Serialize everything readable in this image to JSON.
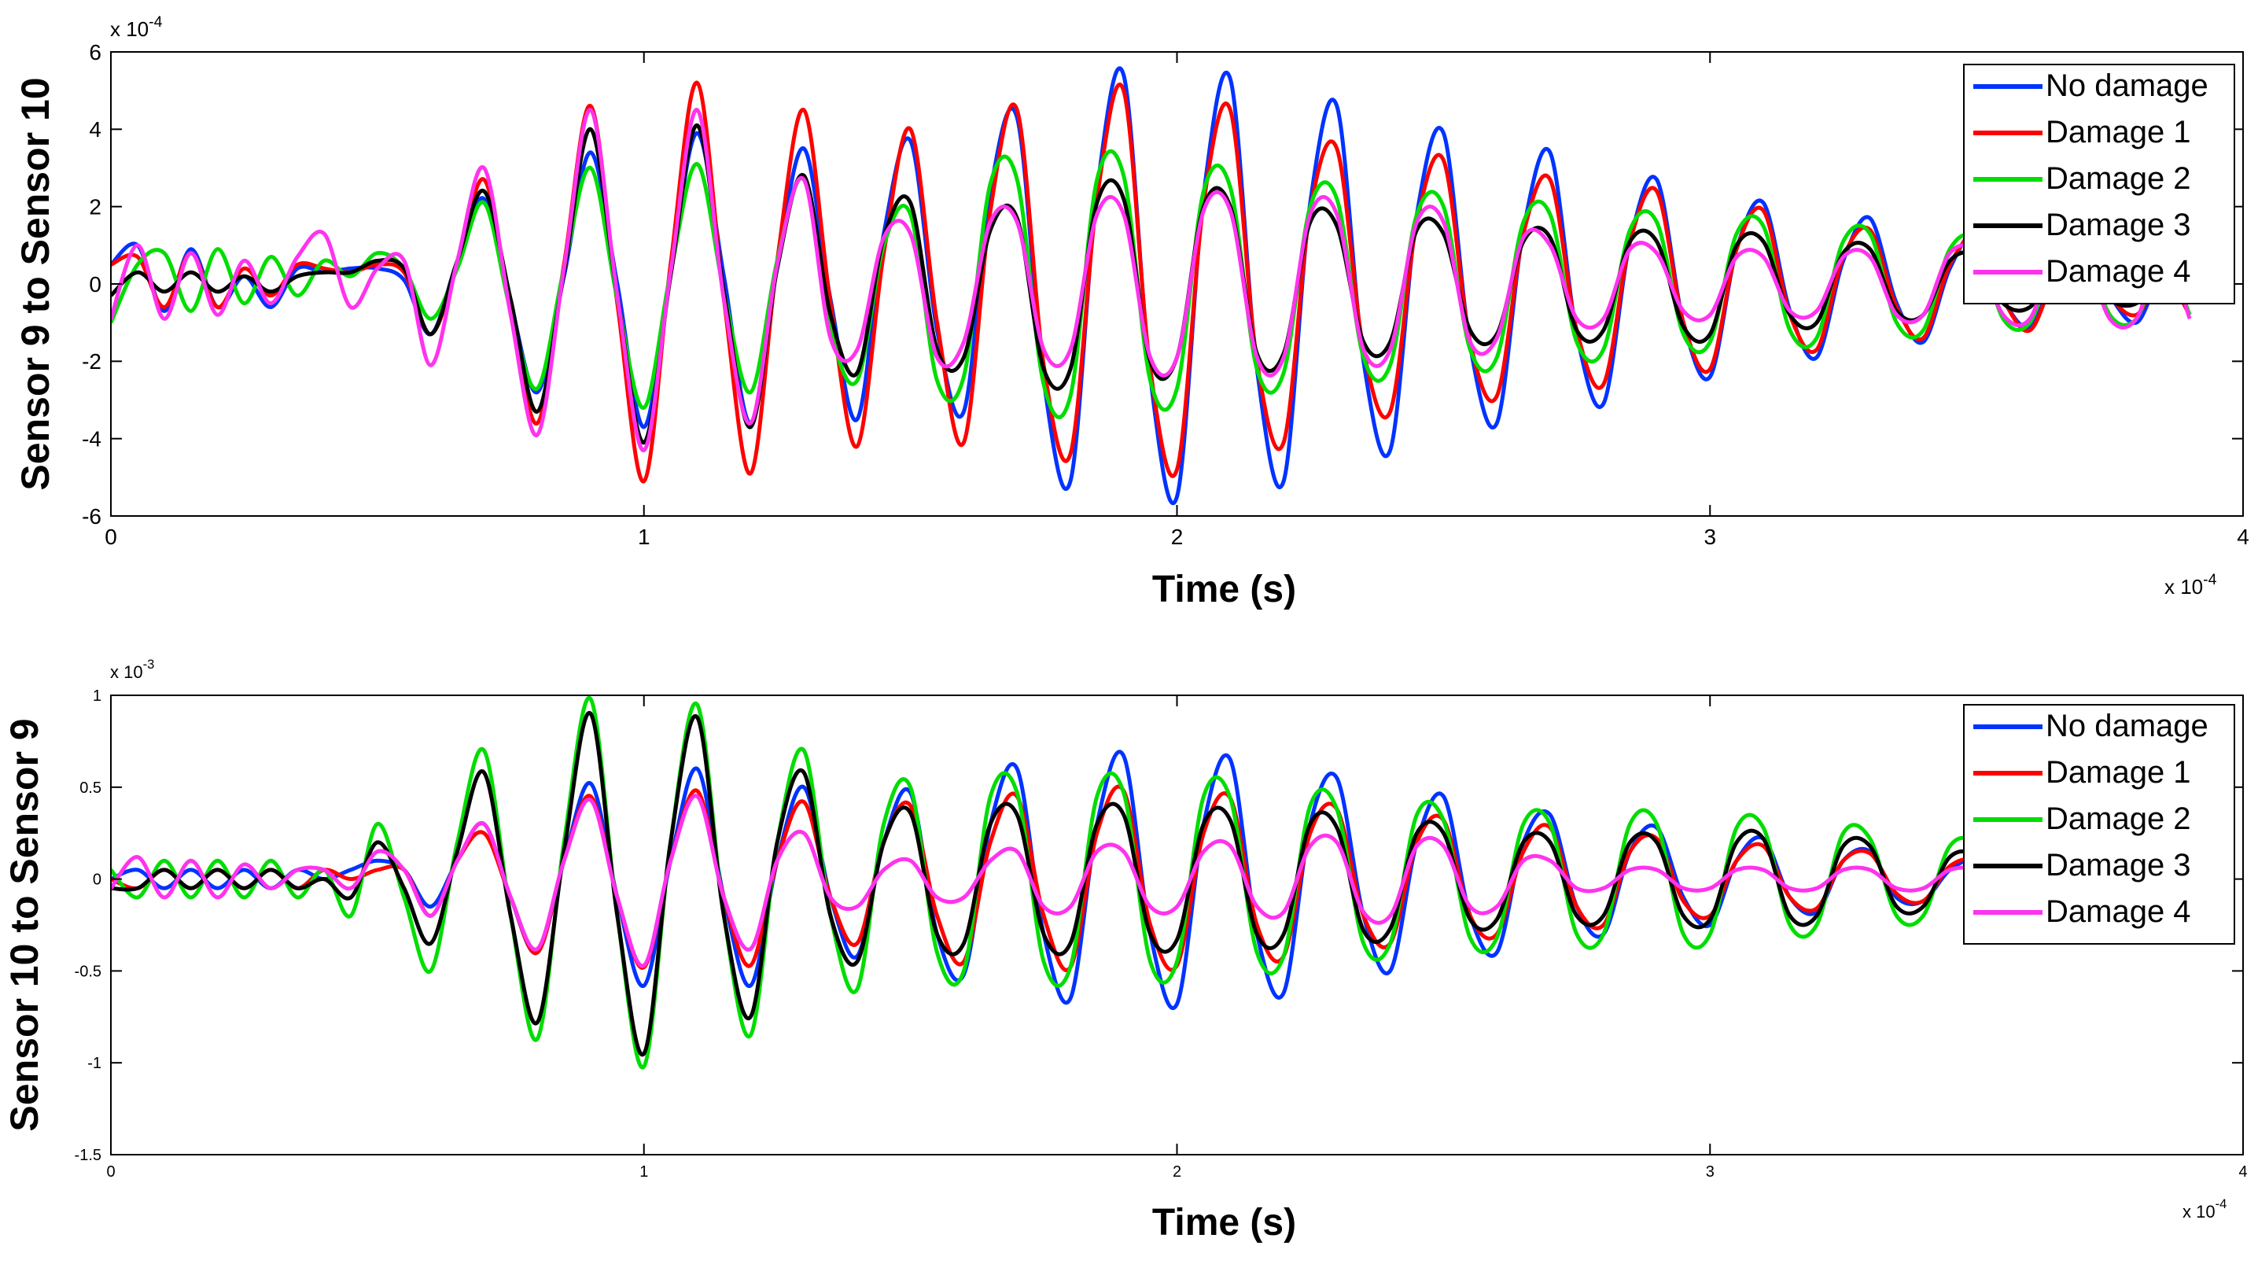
{
  "chart_data": [
    {
      "type": "line",
      "ylabel": "Sensor 9 to Sensor 10",
      "xlabel": "Time (s)",
      "x_exponent": "x 10",
      "x_exponent_power": "-4",
      "y_exponent": "x 10",
      "y_exponent_power": "-4",
      "xlim": [
        0,
        4
      ],
      "ylim": [
        -6,
        6
      ],
      "x_ticks": [
        "0",
        "1",
        "2",
        "3",
        "4"
      ],
      "y_ticks": [
        "-6",
        "-4",
        "-2",
        "0",
        "2",
        "4",
        "6"
      ],
      "legend_position": "top-right",
      "x": [
        0,
        0.05,
        0.1,
        0.15,
        0.2,
        0.25,
        0.3,
        0.35,
        0.4,
        0.45,
        0.5,
        0.55,
        0.6,
        0.65,
        0.7,
        0.75,
        0.8,
        0.85,
        0.9,
        0.95,
        1.0,
        1.05,
        1.1,
        1.15,
        1.2,
        1.25,
        1.3,
        1.35,
        1.4,
        1.45,
        1.5,
        1.55,
        1.6,
        1.65,
        1.7,
        1.75,
        1.8,
        1.85,
        1.9,
        1.95,
        2.0,
        2.05,
        2.1,
        2.15,
        2.2,
        2.25,
        2.3,
        2.35,
        2.4,
        2.45,
        2.5,
        2.55,
        2.6,
        2.65,
        2.7,
        2.75,
        2.8,
        2.85,
        2.9,
        2.95,
        3.0,
        3.05,
        3.1,
        3.15,
        3.2,
        3.25,
        3.3,
        3.35,
        3.4,
        3.45,
        3.5,
        3.55,
        3.6,
        3.65,
        3.7,
        3.75,
        3.8,
        3.85,
        3.9
      ],
      "series": [
        {
          "name": "No damage",
          "color": "#0033ff",
          "values": [
            0.5,
            1.0,
            -0.7,
            0.9,
            -0.6,
            0.2,
            -0.6,
            0.4,
            0.3,
            0.4,
            0.4,
            0.1,
            -1.3,
            0.6,
            2.2,
            -0.5,
            -2.8,
            0.2,
            3.4,
            0.0,
            -3.7,
            0.3,
            3.9,
            0.2,
            -3.6,
            0.5,
            3.5,
            -0.4,
            -3.5,
            1.3,
            3.7,
            -1.2,
            -3.3,
            2.4,
            4.3,
            -2.5,
            -5.1,
            2.4,
            5.4,
            -2.4,
            -5.5,
            2.3,
            5.3,
            -2.2,
            -5.1,
            2.1,
            4.6,
            -2.0,
            -4.3,
            1.8,
            3.9,
            -1.6,
            -3.6,
            1.4,
            3.4,
            -1.3,
            -3.1,
            1.1,
            2.7,
            -1.0,
            -2.4,
            0.9,
            2.1,
            -0.7,
            -1.9,
            0.6,
            1.7,
            -0.5,
            -1.5,
            0.4,
            1.3,
            -0.4,
            -1.1,
            0.3,
            0.9,
            -0.3,
            -1.0,
            0.2,
            -0.8
          ]
        },
        {
          "name": "Damage 1",
          "color": "#ff0000",
          "values": [
            0.5,
            0.7,
            -0.6,
            0.8,
            -0.6,
            0.4,
            -0.3,
            0.5,
            0.4,
            0.3,
            0.5,
            0.3,
            -1.3,
            0.5,
            2.7,
            -0.6,
            -3.6,
            0.5,
            4.6,
            -0.5,
            -5.1,
            0.5,
            5.2,
            -0.4,
            -4.9,
            0.6,
            4.5,
            -0.5,
            -4.2,
            0.8,
            4.0,
            -1.0,
            -4.1,
            1.9,
            4.5,
            -2.1,
            -4.4,
            2.2,
            5.0,
            -2.2,
            -4.8,
            2.1,
            4.5,
            -2.0,
            -4.1,
            1.9,
            3.5,
            -1.7,
            -3.3,
            1.6,
            3.2,
            -1.5,
            -2.9,
            1.3,
            2.7,
            -1.2,
            -2.6,
            1.1,
            2.4,
            -1.0,
            -2.2,
            0.9,
            1.9,
            -0.8,
            -1.7,
            0.7,
            1.4,
            -0.6,
            -1.4,
            0.5,
            1.2,
            -0.4,
            -1.2,
            0.3,
            1.0,
            -0.3,
            -0.8,
            0.2,
            -0.8
          ]
        },
        {
          "name": "Damage 2",
          "color": "#00dd00",
          "values": [
            -1.0,
            0.5,
            0.8,
            -0.7,
            0.9,
            -0.5,
            0.7,
            -0.3,
            0.6,
            0.2,
            0.8,
            0.4,
            -0.9,
            0.4,
            2.1,
            -0.7,
            -2.7,
            0.4,
            3.0,
            -0.4,
            -3.2,
            0.3,
            3.1,
            -0.2,
            -2.8,
            0.6,
            2.7,
            -1.2,
            -2.5,
            1.0,
            1.8,
            -2.5,
            -2.4,
            2.6,
            2.7,
            -2.6,
            -2.9,
            2.7,
            2.8,
            -2.5,
            -2.7,
            2.4,
            2.5,
            -2.2,
            -2.3,
            2.0,
            2.2,
            -1.9,
            -2.1,
            1.8,
            2.0,
            -1.7,
            -1.9,
            1.6,
            1.8,
            -1.5,
            -1.7,
            1.4,
            1.6,
            -1.3,
            -1.5,
            1.3,
            1.5,
            -1.2,
            -1.4,
            1.1,
            1.3,
            -1.0,
            -1.2,
            0.9,
            1.1,
            -0.9,
            -1.0,
            0.8,
            1.0,
            -0.8,
            -0.9,
            0.7,
            -0.8
          ]
        },
        {
          "name": "Damage 3",
          "color": "#000000",
          "values": [
            -0.3,
            0.3,
            -0.2,
            0.3,
            -0.2,
            0.2,
            -0.2,
            0.2,
            0.3,
            0.3,
            0.6,
            0.4,
            -1.3,
            0.6,
            2.4,
            -0.4,
            -3.3,
            0.3,
            4.0,
            -0.3,
            -4.1,
            0.2,
            4.1,
            -0.2,
            -3.7,
            0.4,
            2.8,
            -0.8,
            -2.3,
            1.2,
            2.1,
            -1.7,
            -1.9,
            1.4,
            1.7,
            -2.2,
            -2.2,
            2.1,
            2.2,
            -2.0,
            -1.9,
            2.0,
            2.0,
            -1.8,
            -1.8,
            1.6,
            1.5,
            -1.5,
            -1.5,
            1.4,
            1.3,
            -1.2,
            -1.3,
            1.1,
            1.2,
            -1.2,
            -1.2,
            1.1,
            1.1,
            -1.1,
            -1.3,
            1.0,
            1.1,
            -0.8,
            -1.0,
            0.8,
            0.9,
            -0.7,
            -0.8,
            0.6,
            0.7,
            -0.5,
            -0.6,
            0.4,
            0.5,
            -0.4,
            -0.5,
            0.3,
            -0.3
          ]
        },
        {
          "name": "Damage 4",
          "color": "#ff33ee",
          "values": [
            -0.9,
            1.0,
            -0.9,
            0.8,
            -0.8,
            0.6,
            -0.5,
            0.7,
            1.3,
            -0.6,
            0.4,
            0.6,
            -2.1,
            0.6,
            3.0,
            -0.8,
            -3.9,
            0.4,
            4.5,
            -0.3,
            -4.3,
            0.3,
            4.5,
            -0.4,
            -3.6,
            0.5,
            2.7,
            -1.4,
            -1.7,
            1.2,
            1.3,
            -1.9,
            -1.5,
            1.6,
            1.6,
            -1.7,
            -1.7,
            1.8,
            1.8,
            -1.9,
            -1.9,
            1.9,
            1.9,
            -1.9,
            -1.9,
            1.8,
            1.8,
            -1.7,
            -1.7,
            1.6,
            1.6,
            -1.5,
            -1.4,
            1.2,
            1.0,
            -0.9,
            -0.9,
            0.9,
            0.8,
            -0.7,
            -0.8,
            0.7,
            0.7,
            -0.7,
            -0.7,
            0.7,
            0.7,
            -0.8,
            -0.8,
            0.8,
            0.8,
            -0.8,
            -0.9,
            0.9,
            0.9,
            -0.9,
            -0.9,
            0.9,
            -0.9
          ]
        }
      ]
    },
    {
      "type": "line",
      "ylabel": "Sensor 10 to Sensor 9",
      "xlabel": "Time (s)",
      "x_exponent": "x 10",
      "x_exponent_power": "-4",
      "y_exponent": "x 10",
      "y_exponent_power": "-3",
      "xlim": [
        0,
        4
      ],
      "ylim": [
        -1.5,
        1
      ],
      "x_ticks": [
        "0",
        "1",
        "2",
        "3",
        "4"
      ],
      "y_ticks": [
        "-1.5",
        "-1",
        "-0.5",
        "0",
        "0.5",
        "1"
      ],
      "legend_position": "top-right",
      "x": [
        0,
        0.05,
        0.1,
        0.15,
        0.2,
        0.25,
        0.3,
        0.35,
        0.4,
        0.45,
        0.5,
        0.55,
        0.6,
        0.65,
        0.7,
        0.75,
        0.8,
        0.85,
        0.9,
        0.95,
        1.0,
        1.05,
        1.1,
        1.15,
        1.2,
        1.25,
        1.3,
        1.35,
        1.4,
        1.45,
        1.5,
        1.55,
        1.6,
        1.65,
        1.7,
        1.75,
        1.8,
        1.85,
        1.9,
        1.95,
        2.0,
        2.05,
        2.1,
        2.15,
        2.2,
        2.25,
        2.3,
        2.35,
        2.4,
        2.45,
        2.5,
        2.55,
        2.6,
        2.65,
        2.7,
        2.75,
        2.8,
        2.85,
        2.9,
        2.95,
        3.0,
        3.05,
        3.1,
        3.15,
        3.2,
        3.25,
        3.3,
        3.35,
        3.4,
        3.45,
        3.5,
        3.55,
        3.6,
        3.65,
        3.7,
        3.75,
        3.8,
        3.85,
        3.9
      ],
      "series": [
        {
          "name": "No damage",
          "color": "#0033ff",
          "values": [
            0.0,
            0.05,
            -0.05,
            0.05,
            -0.05,
            0.05,
            -0.05,
            0.05,
            0.0,
            0.05,
            0.1,
            0.05,
            -0.15,
            0.1,
            0.3,
            -0.1,
            -0.4,
            0.1,
            0.52,
            -0.1,
            -0.58,
            0.1,
            0.6,
            -0.1,
            -0.58,
            0.1,
            0.5,
            -0.1,
            -0.42,
            0.2,
            0.47,
            -0.3,
            -0.52,
            0.3,
            0.6,
            -0.3,
            -0.65,
            0.3,
            0.67,
            -0.3,
            -0.68,
            0.3,
            0.65,
            -0.3,
            -0.62,
            0.3,
            0.55,
            -0.2,
            -0.5,
            0.2,
            0.45,
            -0.2,
            -0.4,
            0.2,
            0.35,
            -0.15,
            -0.3,
            0.15,
            0.28,
            -0.1,
            -0.25,
            0.1,
            0.22,
            -0.1,
            -0.18,
            0.1,
            0.15,
            -0.1,
            -0.12,
            0.05,
            0.1,
            -0.05,
            -0.1,
            0.05,
            0.08,
            -0.05,
            -0.08,
            0.05,
            -0.05
          ]
        },
        {
          "name": "Damage 1",
          "color": "#ff0000",
          "values": [
            0.0,
            -0.05,
            0.05,
            -0.05,
            0.05,
            -0.05,
            0.05,
            -0.05,
            0.05,
            0.0,
            0.05,
            0.05,
            -0.2,
            0.1,
            0.25,
            -0.1,
            -0.4,
            0.1,
            0.45,
            -0.1,
            -0.48,
            0.1,
            0.48,
            -0.1,
            -0.47,
            0.1,
            0.42,
            -0.1,
            -0.35,
            0.2,
            0.4,
            -0.2,
            -0.45,
            0.2,
            0.45,
            -0.2,
            -0.48,
            0.25,
            0.48,
            -0.25,
            -0.47,
            0.25,
            0.44,
            -0.25,
            -0.42,
            0.25,
            0.38,
            -0.2,
            -0.35,
            0.2,
            0.32,
            -0.2,
            -0.3,
            0.15,
            0.28,
            -0.15,
            -0.25,
            0.15,
            0.22,
            -0.12,
            -0.2,
            0.1,
            0.18,
            -0.1,
            -0.16,
            0.1,
            0.14,
            -0.08,
            -0.12,
            0.07,
            0.1,
            -0.05,
            -0.1,
            0.05,
            0.1,
            -0.05,
            -0.08,
            0.05,
            -0.05
          ]
        },
        {
          "name": "Damage 2",
          "color": "#00dd00",
          "values": [
            0.05,
            -0.1,
            0.1,
            -0.1,
            0.1,
            -0.1,
            0.1,
            -0.1,
            0.05,
            -0.2,
            0.3,
            -0.1,
            -0.5,
            0.2,
            0.7,
            -0.2,
            -0.87,
            0.2,
            0.98,
            -0.2,
            -1.02,
            0.2,
            0.95,
            -0.2,
            -0.85,
            0.2,
            0.7,
            -0.2,
            -0.6,
            0.3,
            0.5,
            -0.4,
            -0.5,
            0.45,
            0.47,
            -0.45,
            -0.48,
            0.45,
            0.47,
            -0.45,
            -0.45,
            0.45,
            0.44,
            -0.4,
            -0.42,
            0.4,
            0.38,
            -0.35,
            -0.35,
            0.35,
            0.32,
            -0.32,
            -0.32,
            0.3,
            0.3,
            -0.3,
            -0.3,
            0.3,
            0.3,
            -0.3,
            -0.3,
            0.28,
            0.28,
            -0.25,
            -0.25,
            0.25,
            0.22,
            -0.2,
            -0.2,
            0.18,
            0.18,
            -0.15,
            -0.15,
            0.15,
            0.15,
            -0.15,
            -0.15,
            0.15,
            0.1
          ]
        },
        {
          "name": "Damage 3",
          "color": "#000000",
          "values": [
            -0.05,
            -0.05,
            0.05,
            -0.05,
            0.05,
            -0.05,
            0.05,
            -0.05,
            0.0,
            -0.1,
            0.2,
            -0.05,
            -0.35,
            0.15,
            0.58,
            -0.2,
            -0.78,
            0.15,
            0.9,
            -0.2,
            -0.95,
            0.2,
            0.88,
            -0.2,
            -0.75,
            0.2,
            0.58,
            -0.2,
            -0.45,
            0.2,
            0.36,
            -0.3,
            -0.35,
            0.3,
            0.35,
            -0.3,
            -0.35,
            0.3,
            0.35,
            -0.3,
            -0.33,
            0.3,
            0.32,
            -0.3,
            -0.3,
            0.3,
            0.28,
            -0.28,
            -0.27,
            0.25,
            0.25,
            -0.22,
            -0.22,
            0.2,
            0.2,
            -0.2,
            -0.2,
            0.2,
            0.2,
            -0.2,
            -0.22,
            0.2,
            0.22,
            -0.2,
            -0.2,
            0.18,
            0.18,
            -0.15,
            -0.15,
            0.12,
            0.12,
            -0.1,
            -0.1,
            0.08,
            0.08,
            -0.05,
            -0.05,
            0.05,
            0.0
          ]
        },
        {
          "name": "Damage 4",
          "color": "#ff33ee",
          "values": [
            -0.05,
            0.12,
            -0.1,
            0.1,
            -0.1,
            0.08,
            -0.05,
            0.05,
            0.05,
            -0.05,
            0.15,
            0.05,
            -0.2,
            0.1,
            0.3,
            -0.1,
            -0.38,
            0.1,
            0.43,
            -0.1,
            -0.47,
            0.1,
            0.45,
            -0.1,
            -0.38,
            0.1,
            0.25,
            -0.1,
            -0.15,
            0.05,
            0.1,
            -0.1,
            -0.1,
            0.1,
            0.15,
            -0.15,
            -0.15,
            0.15,
            0.15,
            -0.15,
            -0.15,
            0.15,
            0.18,
            -0.15,
            -0.18,
            0.18,
            0.2,
            -0.18,
            -0.2,
            0.18,
            0.18,
            -0.15,
            -0.15,
            0.1,
            0.1,
            -0.05,
            -0.05,
            0.05,
            0.05,
            -0.05,
            -0.05,
            0.05,
            0.05,
            -0.05,
            -0.05,
            0.05,
            0.05,
            -0.05,
            -0.05,
            0.05,
            0.05,
            -0.05,
            -0.05,
            0.05,
            0.05,
            -0.05,
            -0.05,
            0.05,
            0.0
          ]
        }
      ]
    }
  ]
}
